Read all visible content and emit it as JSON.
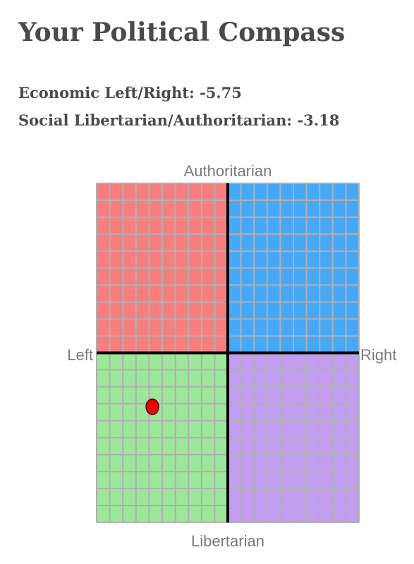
{
  "header": {
    "title": "Your Political Compass"
  },
  "stats": {
    "economic_label": "Economic Left/Right:",
    "economic_value": "-5.75",
    "social_label": "Social Libertarian/Authoritarian:",
    "social_value": "-3.18"
  },
  "chart_data": {
    "type": "scatter",
    "axis_labels": {
      "top": "Authoritarian",
      "bottom": "Libertarian",
      "left": "Left",
      "right": "Right"
    },
    "xlim": [
      -10,
      10
    ],
    "ylim": [
      -10,
      10
    ],
    "grid": true,
    "quadrant_colors": {
      "authoritarian_left": "#f77f7f",
      "authoritarian_right": "#48a8f8",
      "libertarian_left": "#9de79a",
      "libertarian_right": "#c29df0"
    },
    "grid_color": "#b0b0b0",
    "axis_color": "#000000",
    "points": [
      {
        "x": -5.75,
        "y": -3.18,
        "color": "#ee0000"
      }
    ]
  }
}
